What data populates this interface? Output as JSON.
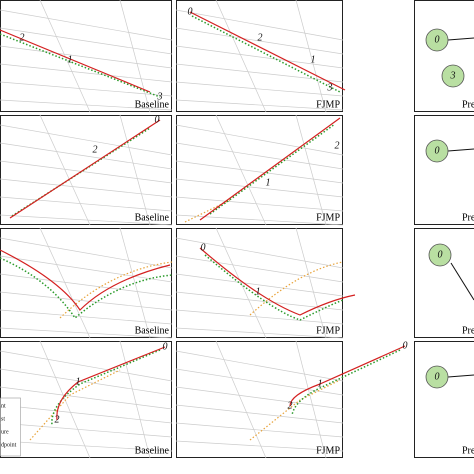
{
  "rows": [
    {
      "baseline": {
        "caption": "Baseline",
        "agents": [
          "2",
          "1",
          "3"
        ]
      },
      "fjmp": {
        "caption": "FJMP",
        "agents": [
          "0",
          "2",
          "1",
          "3"
        ]
      },
      "graph": {
        "caption": "Pre",
        "nodes": [
          "0",
          "3"
        ]
      }
    },
    {
      "baseline": {
        "caption": "Baseline",
        "agents": [
          "0",
          "2"
        ]
      },
      "fjmp": {
        "caption": "FJMP",
        "agents": [
          "2",
          "1"
        ]
      },
      "graph": {
        "caption": "Pre",
        "nodes": [
          "0"
        ]
      }
    },
    {
      "baseline": {
        "caption": "Baseline",
        "agents": []
      },
      "fjmp": {
        "caption": "FJMP",
        "agents": [
          "0",
          "1"
        ]
      },
      "graph": {
        "caption": "Pre",
        "nodes": [
          "0"
        ]
      }
    },
    {
      "baseline": {
        "caption": "Baseline",
        "agents": [
          "0",
          "1",
          "2"
        ]
      },
      "fjmp": {
        "caption": "FJMP",
        "agents": [
          "0",
          "1",
          "2"
        ]
      },
      "graph": {
        "caption": "Pre",
        "nodes": [
          "0"
        ]
      }
    }
  ],
  "legend": [
    "nt",
    "st",
    "ure",
    "dpoint"
  ]
}
